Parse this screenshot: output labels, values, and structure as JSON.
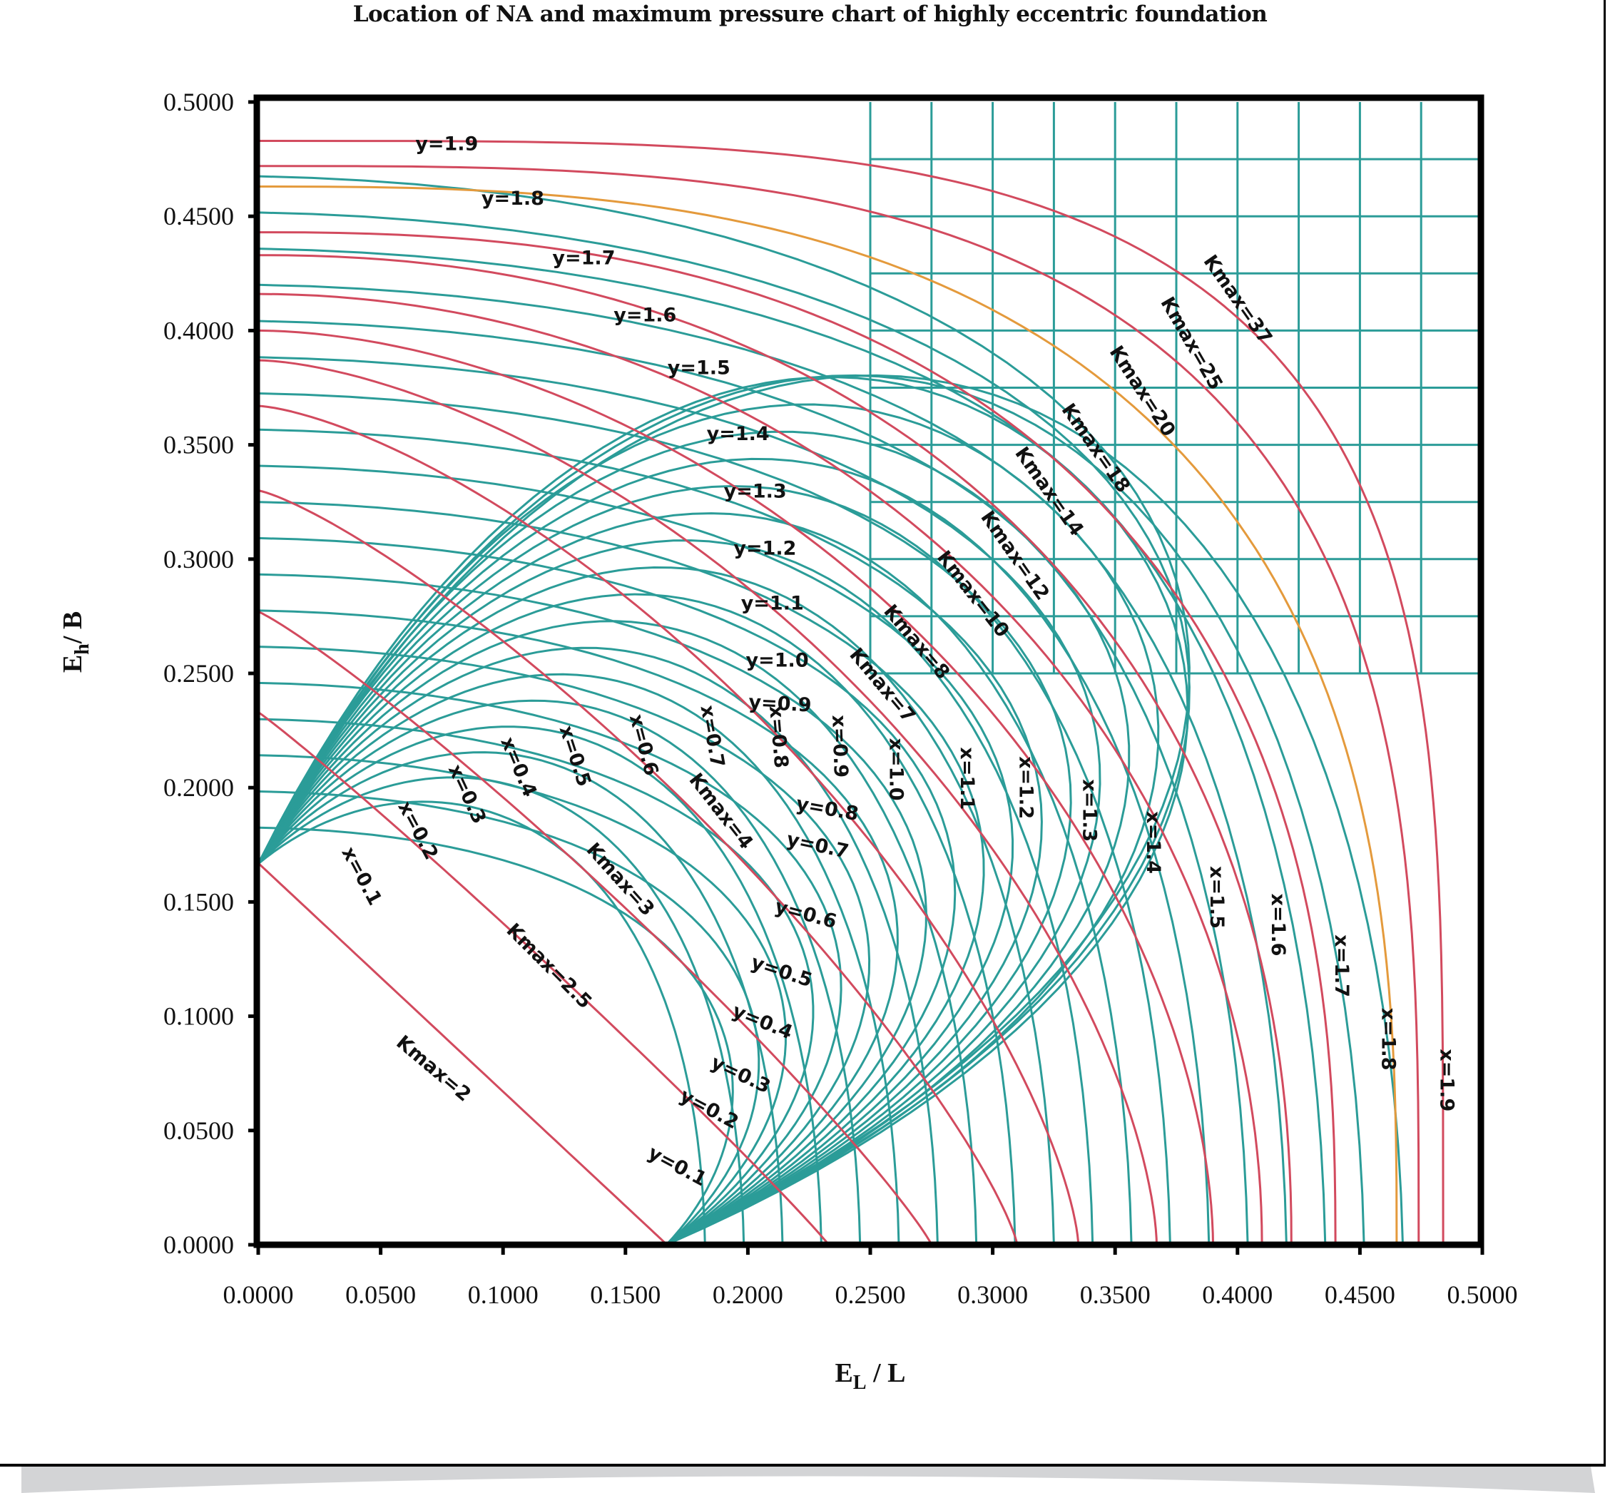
{
  "figure": {
    "title": "Location of NA and maximum pressure chart of highly eccentric foundation"
  },
  "colors": {
    "x_curves": "#2b9c98",
    "y_curves": "#2b9c98",
    "grid": "#2b9c98",
    "kmax_curves": "#d24a5e",
    "kmax_highlight": "#e49a3c",
    "axis": "#000000",
    "text": "#111111"
  },
  "chart_data": {
    "type": "line",
    "title": "Location of NA and maximum pressure chart of highly eccentric foundation",
    "xlabel": "E_L / L",
    "ylabel": "E_h / B",
    "xlabel_main": "E",
    "xlabel_sub": "L",
    "xlabel_tail": " / L",
    "ylabel_main": "E",
    "ylabel_sub": "h",
    "ylabel_tail": "/ B",
    "xlim": [
      0,
      0.5
    ],
    "ylim": [
      0,
      0.5
    ],
    "xticks": [
      "0.0000",
      "0.0500",
      "0.1000",
      "0.1500",
      "0.2000",
      "0.2500",
      "0.3000",
      "0.3500",
      "0.4000",
      "0.4500",
      "0.5000"
    ],
    "yticks": [
      "0.0000",
      "0.0500",
      "0.1000",
      "0.1500",
      "0.2000",
      "0.2500",
      "0.3000",
      "0.3500",
      "0.4000",
      "0.4500",
      "0.5000"
    ],
    "grid": false,
    "legend": null,
    "x_family": {
      "name": "x (NA intercept along L)",
      "start": [
        0,
        0.1667
      ],
      "values": [
        0.1,
        0.2,
        0.3,
        0.4,
        0.5,
        0.6,
        0.7,
        0.8,
        0.9,
        1.0,
        1.1,
        1.2,
        1.3,
        1.4,
        1.5,
        1.6,
        1.7,
        1.8,
        1.9
      ],
      "labels": [
        {
          "text": "x=0.1",
          "x": 0.04,
          "y": 0.16,
          "rot": 62
        },
        {
          "text": "x=0.2",
          "x": 0.063,
          "y": 0.18,
          "rot": 62
        },
        {
          "text": "x=0.3",
          "x": 0.083,
          "y": 0.196,
          "rot": 65
        },
        {
          "text": "x=0.4",
          "x": 0.104,
          "y": 0.208,
          "rot": 67
        },
        {
          "text": "x=0.5",
          "x": 0.127,
          "y": 0.213,
          "rot": 72
        },
        {
          "text": "x=0.6",
          "x": 0.155,
          "y": 0.218,
          "rot": 75
        },
        {
          "text": "x=0.7",
          "x": 0.183,
          "y": 0.222,
          "rot": 80
        },
        {
          "text": "x=0.8",
          "x": 0.21,
          "y": 0.222,
          "rot": 85
        },
        {
          "text": "x=0.9",
          "x": 0.235,
          "y": 0.218,
          "rot": 88
        },
        {
          "text": "x=1.0",
          "x": 0.258,
          "y": 0.208,
          "rot": 90
        },
        {
          "text": "x=1.1",
          "x": 0.287,
          "y": 0.204,
          "rot": 90
        },
        {
          "text": "x=1.2",
          "x": 0.311,
          "y": 0.2,
          "rot": 90
        },
        {
          "text": "x=1.3",
          "x": 0.337,
          "y": 0.19,
          "rot": 90
        },
        {
          "text": "x=1.4",
          "x": 0.363,
          "y": 0.176,
          "rot": 90
        },
        {
          "text": "x=1.5",
          "x": 0.389,
          "y": 0.152,
          "rot": 90
        },
        {
          "text": "x=1.6",
          "x": 0.414,
          "y": 0.14,
          "rot": 90
        },
        {
          "text": "x=1.7",
          "x": 0.44,
          "y": 0.122,
          "rot": 90
        },
        {
          "text": "x=1.8",
          "x": 0.459,
          "y": 0.09,
          "rot": 90
        },
        {
          "text": "x=1.9",
          "x": 0.483,
          "y": 0.072,
          "rot": 90
        }
      ]
    },
    "y_family": {
      "name": "y (NA intercept along B)",
      "start": [
        0.1667,
        0
      ],
      "values": [
        0.1,
        0.2,
        0.3,
        0.4,
        0.5,
        0.6,
        0.7,
        0.8,
        0.9,
        1.0,
        1.1,
        1.2,
        1.3,
        1.4,
        1.5,
        1.6,
        1.7,
        1.8,
        1.9
      ],
      "labels": [
        {
          "text": "y=0.1",
          "x": 0.17,
          "y": 0.032,
          "rot": 28
        },
        {
          "text": "y=0.2",
          "x": 0.183,
          "y": 0.057,
          "rot": 28
        },
        {
          "text": "y=0.3",
          "x": 0.196,
          "y": 0.072,
          "rot": 25
        },
        {
          "text": "y=0.4",
          "x": 0.205,
          "y": 0.095,
          "rot": 22
        },
        {
          "text": "y=0.5",
          "x": 0.213,
          "y": 0.117,
          "rot": 18
        },
        {
          "text": "y=0.6",
          "x": 0.223,
          "y": 0.142,
          "rot": 15
        },
        {
          "text": "y=0.7",
          "x": 0.228,
          "y": 0.172,
          "rot": 12
        },
        {
          "text": "y=0.8",
          "x": 0.232,
          "y": 0.188,
          "rot": 10
        },
        {
          "text": "y=0.9",
          "x": 0.213,
          "y": 0.234,
          "rot": 3
        },
        {
          "text": "y=1.0",
          "x": 0.212,
          "y": 0.253,
          "rot": 0
        },
        {
          "text": "y=1.1",
          "x": 0.21,
          "y": 0.278,
          "rot": 0
        },
        {
          "text": "y=1.2",
          "x": 0.207,
          "y": 0.302,
          "rot": 0
        },
        {
          "text": "y=1.3",
          "x": 0.203,
          "y": 0.327,
          "rot": 0
        },
        {
          "text": "y=1.4",
          "x": 0.196,
          "y": 0.352,
          "rot": 0
        },
        {
          "text": "y=1.5",
          "x": 0.18,
          "y": 0.381,
          "rot": 0
        },
        {
          "text": "y=1.6",
          "x": 0.158,
          "y": 0.404,
          "rot": 0
        },
        {
          "text": "y=1.7",
          "x": 0.133,
          "y": 0.429,
          "rot": 0
        },
        {
          "text": "y=1.8",
          "x": 0.104,
          "y": 0.455,
          "rot": 0
        },
        {
          "text": "y=1.9",
          "x": 0.077,
          "y": 0.479,
          "rot": 0
        }
      ]
    },
    "kmax_family": {
      "name": "K_max",
      "series": [
        {
          "k": "2",
          "x_intercept": 0.167,
          "y_intercept": 0.167,
          "shape": 1.0
        },
        {
          "k": "2.5",
          "x_intercept": 0.233,
          "y_intercept": 0.233,
          "shape": 1.05
        },
        {
          "k": "3",
          "x_intercept": 0.275,
          "y_intercept": 0.277,
          "shape": 1.12
        },
        {
          "k": "4",
          "x_intercept": 0.31,
          "y_intercept": 0.33,
          "shape": 1.25
        },
        {
          "k": "7",
          "x_intercept": 0.335,
          "y_intercept": 0.367,
          "shape": 1.45
        },
        {
          "k": "8",
          "x_intercept": 0.367,
          "y_intercept": 0.387,
          "shape": 1.6
        },
        {
          "k": "10",
          "x_intercept": 0.39,
          "y_intercept": 0.4,
          "shape": 1.8
        },
        {
          "k": "12",
          "x_intercept": 0.41,
          "y_intercept": 0.416,
          "shape": 2.0
        },
        {
          "k": "14",
          "x_intercept": 0.422,
          "y_intercept": 0.433,
          "shape": 2.2
        },
        {
          "k": "18",
          "x_intercept": 0.44,
          "y_intercept": 0.443,
          "shape": 2.5
        },
        {
          "k": "20",
          "x_intercept": 0.465,
          "y_intercept": 0.463,
          "shape": 2.8,
          "highlight": true
        },
        {
          "k": "25",
          "x_intercept": 0.474,
          "y_intercept": 0.472,
          "shape": 3.2
        },
        {
          "k": "37",
          "x_intercept": 0.484,
          "y_intercept": 0.483,
          "shape": 3.8
        }
      ],
      "labels": [
        {
          "text": "Kmax=2",
          "x": 0.07,
          "y": 0.075,
          "rot": 40
        },
        {
          "text": "Kmax=2.5",
          "x": 0.117,
          "y": 0.12,
          "rot": 45
        },
        {
          "text": "Kmax=3",
          "x": 0.146,
          "y": 0.158,
          "rot": 48
        },
        {
          "text": "Kmax=4",
          "x": 0.187,
          "y": 0.188,
          "rot": 52
        },
        {
          "text": "Kmax=7",
          "x": 0.253,
          "y": 0.243,
          "rot": 50
        },
        {
          "text": "Kmax=8",
          "x": 0.267,
          "y": 0.262,
          "rot": 50
        },
        {
          "text": "Kmax=10",
          "x": 0.29,
          "y": 0.283,
          "rot": 52
        },
        {
          "text": "Kmax=12",
          "x": 0.307,
          "y": 0.3,
          "rot": 55
        },
        {
          "text": "Kmax=14",
          "x": 0.321,
          "y": 0.328,
          "rot": 55
        },
        {
          "text": "Kmax=18",
          "x": 0.34,
          "y": 0.347,
          "rot": 55
        },
        {
          "text": "Kmax=20",
          "x": 0.359,
          "y": 0.372,
          "rot": 57
        },
        {
          "text": "Kmax=25",
          "x": 0.379,
          "y": 0.393,
          "rot": 60
        },
        {
          "text": "Kmax=37",
          "x": 0.398,
          "y": 0.412,
          "rot": 55
        }
      ]
    },
    "upper_right_grid": {
      "vertical_x": [
        0.25,
        0.275,
        0.3,
        0.325,
        0.35,
        0.375,
        0.4,
        0.425,
        0.45,
        0.475
      ],
      "horizontal_y": [
        0.25,
        0.275,
        0.3,
        0.325,
        0.35,
        0.375,
        0.4,
        0.425,
        0.45,
        0.475
      ]
    }
  }
}
